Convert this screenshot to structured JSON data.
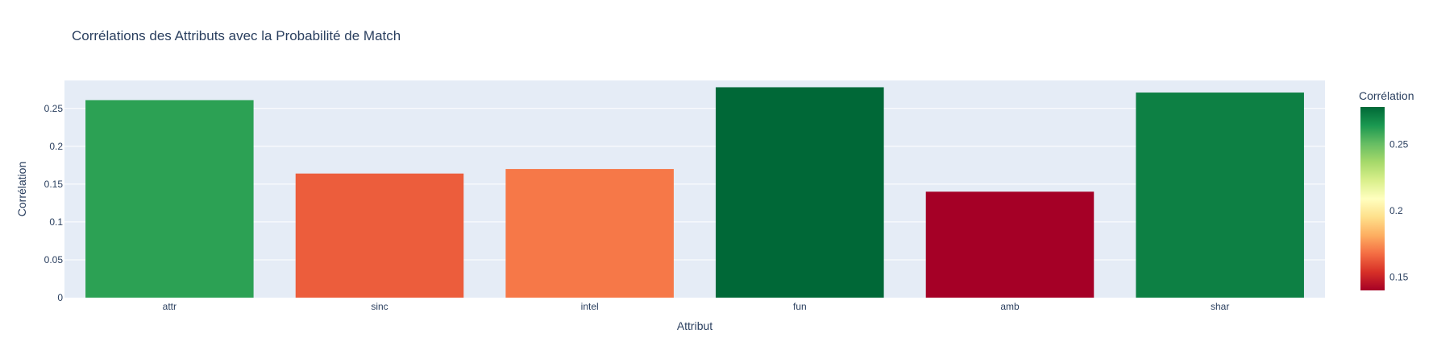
{
  "chart_data": {
    "type": "bar",
    "title": "Corrélations des Attributs avec la Probabilité de Match",
    "xlabel": "Attribut",
    "ylabel": "Corrélation",
    "categories": [
      "attr",
      "sinc",
      "intel",
      "fun",
      "amb",
      "shar"
    ],
    "values": [
      0.261,
      0.164,
      0.17,
      0.278,
      0.14,
      0.271
    ],
    "ylim": [
      0,
      0.287
    ],
    "yticks": [
      0,
      0.05,
      0.1,
      0.15,
      0.2,
      0.25
    ],
    "ytick_labels": [
      "0",
      "0.05",
      "0.1",
      "0.15",
      "0.2",
      "0.25"
    ],
    "grid": true,
    "colorscale": "RdYlGn",
    "colorbar": {
      "title": "Corrélation",
      "range": [
        0.14,
        0.278
      ],
      "ticks": [
        0.15,
        0.2,
        0.25
      ],
      "tick_labels": [
        "0.15",
        "0.2",
        "0.25"
      ]
    },
    "colors": {
      "plot_bg": "#e5ecf6",
      "grid": "#ffffff",
      "text": "#2a3f5f"
    }
  }
}
